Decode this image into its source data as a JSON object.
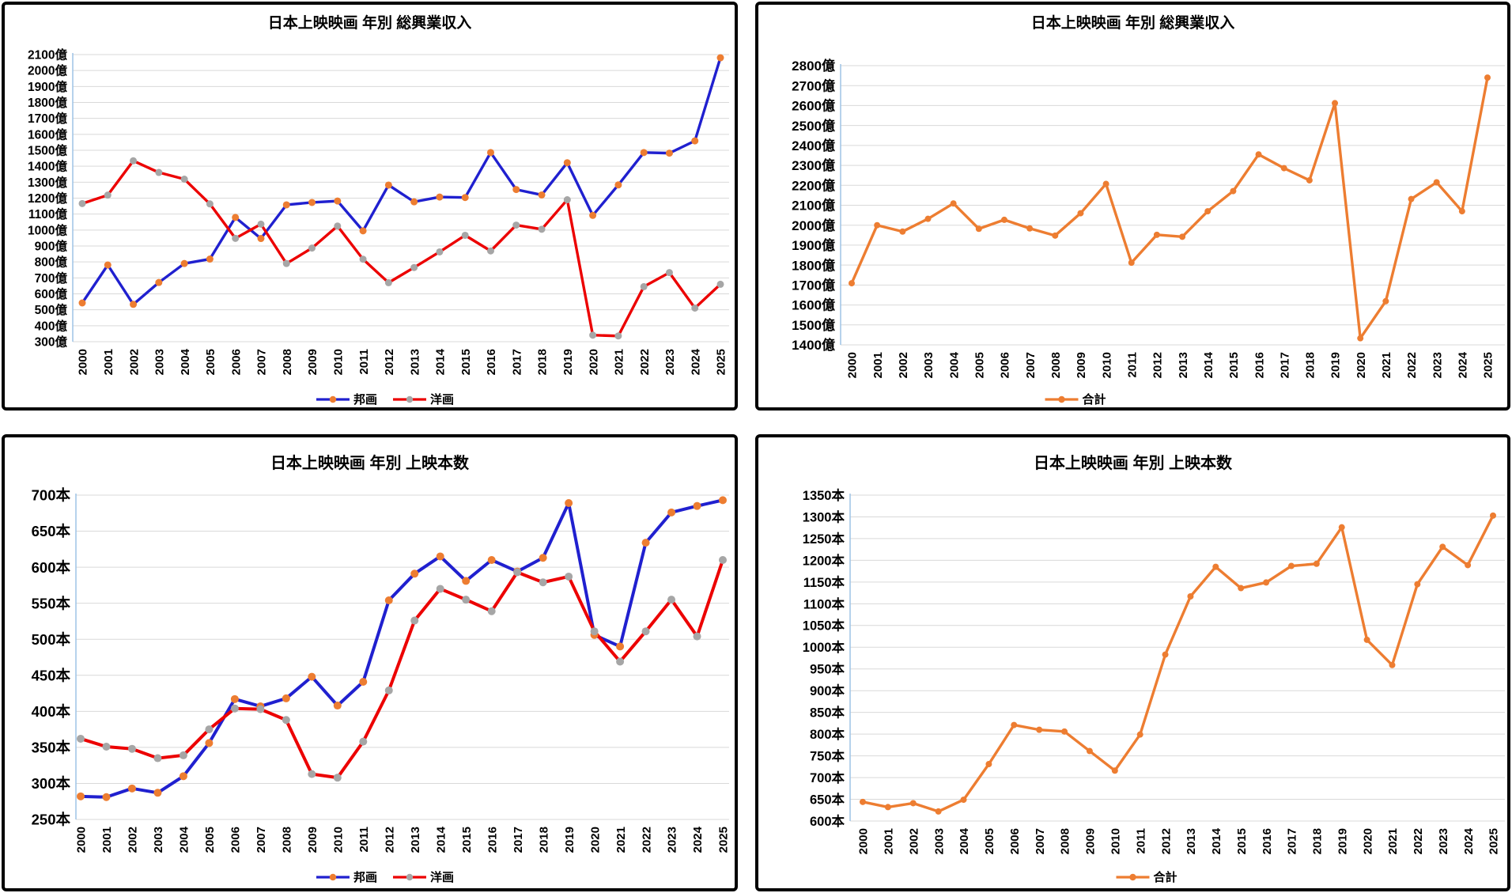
{
  "page": {
    "background": "#ffffff"
  },
  "colors": {
    "gridline": "#d9d9d9",
    "axis_line": "#9dc3e6",
    "domestic_line": "#2020cf",
    "foreign_line": "#ec0000",
    "total_line": "#ed7d31",
    "domestic_marker": "#ed7d31",
    "foreign_marker": "#a6a6a6",
    "total_marker": "#ed7d31",
    "text": "#000000",
    "panel_border": "#000000"
  },
  "years": [
    "2000",
    "2001",
    "2002",
    "2003",
    "2004",
    "2005",
    "2006",
    "2007",
    "2008",
    "2009",
    "2010",
    "2011",
    "2012",
    "2013",
    "2014",
    "2015",
    "2016",
    "2017",
    "2018",
    "2019",
    "2020",
    "2021",
    "2022",
    "2023",
    "2024",
    "2025"
  ],
  "chart_data": [
    {
      "type": "line",
      "title": "日本上映映画 年別 総興業収入",
      "unit": "億",
      "ylim": [
        300,
        2100
      ],
      "y_step": 100,
      "grid": true,
      "legend_position": "bottom",
      "categories": [
        "2000",
        "2001",
        "2002",
        "2003",
        "2004",
        "2005",
        "2006",
        "2007",
        "2008",
        "2009",
        "2010",
        "2011",
        "2012",
        "2013",
        "2014",
        "2015",
        "2016",
        "2017",
        "2018",
        "2019",
        "2020",
        "2021",
        "2022",
        "2023",
        "2024",
        "2025"
      ],
      "series": [
        {
          "name": "邦画",
          "key": "domestic",
          "color": "#2020cf",
          "marker_color": "#ed7d31",
          "values": [
            543,
            781,
            534,
            671,
            790,
            818,
            1079,
            947,
            1158,
            1173,
            1182,
            995,
            1282,
            1177,
            1207,
            1204,
            1486,
            1254,
            1220,
            1422,
            1092,
            1283,
            1486,
            1482,
            1559,
            2080
          ]
        },
        {
          "name": "洋画",
          "key": "foreign",
          "color": "#ec0000",
          "marker_color": "#a6a6a6",
          "values": [
            1166,
            1219,
            1434,
            1361,
            1319,
            1164,
            948,
            1037,
            790,
            887,
            1025,
            817,
            670,
            765,
            863,
            967,
            869,
            1031,
            1005,
            1190,
            341,
            336,
            645,
            733,
            511,
            660
          ]
        }
      ]
    },
    {
      "type": "line",
      "title": "日本上映映画 年別 総興業収入",
      "unit": "億",
      "ylim": [
        1400,
        2800
      ],
      "y_step": 100,
      "grid": true,
      "legend_position": "bottom",
      "categories": [
        "2000",
        "2001",
        "2002",
        "2003",
        "2004",
        "2005",
        "2006",
        "2007",
        "2008",
        "2009",
        "2010",
        "2011",
        "2012",
        "2013",
        "2014",
        "2015",
        "2016",
        "2017",
        "2018",
        "2019",
        "2020",
        "2021",
        "2022",
        "2023",
        "2024",
        "2025"
      ],
      "series": [
        {
          "name": "合計",
          "key": "total",
          "color": "#ed7d31",
          "marker_color": "#ed7d31",
          "values": [
            1709,
            2000,
            1968,
            2032,
            2109,
            1982,
            2027,
            1984,
            1948,
            2060,
            2207,
            1812,
            1952,
            1942,
            2070,
            2171,
            2355,
            2286,
            2225,
            2612,
            1433,
            1619,
            2131,
            2215,
            2070,
            2740
          ]
        }
      ]
    },
    {
      "type": "line",
      "title": "日本上映映画 年別 上映本数",
      "unit": "本",
      "ylim": [
        250,
        700
      ],
      "y_step": 50,
      "grid": true,
      "legend_position": "bottom",
      "categories": [
        "2000",
        "2001",
        "2002",
        "2003",
        "2004",
        "2005",
        "2006",
        "2007",
        "2008",
        "2009",
        "2010",
        "2011",
        "2012",
        "2013",
        "2014",
        "2015",
        "2016",
        "2017",
        "2018",
        "2019",
        "2020",
        "2021",
        "2022",
        "2023",
        "2024",
        "2025"
      ],
      "series": [
        {
          "name": "邦画",
          "key": "domestic",
          "color": "#2020cf",
          "marker_color": "#ed7d31",
          "values": [
            282,
            281,
            293,
            287,
            310,
            356,
            417,
            407,
            418,
            448,
            408,
            441,
            554,
            591,
            615,
            581,
            610,
            594,
            613,
            689,
            506,
            490,
            634,
            676,
            685,
            693
          ]
        },
        {
          "name": "洋画",
          "key": "foreign",
          "color": "#ec0000",
          "marker_color": "#a6a6a6",
          "values": [
            362,
            351,
            348,
            335,
            339,
            375,
            404,
            403,
            388,
            313,
            308,
            358,
            429,
            526,
            570,
            555,
            539,
            593,
            579,
            587,
            511,
            469,
            511,
            555,
            504,
            610
          ]
        }
      ]
    },
    {
      "type": "line",
      "title": "日本上映映画 年別 上映本数",
      "unit": "本",
      "ylim": [
        600,
        1350
      ],
      "y_step": 50,
      "grid": true,
      "legend_position": "bottom",
      "categories": [
        "2000",
        "2001",
        "2002",
        "2003",
        "2004",
        "2005",
        "2006",
        "2007",
        "2008",
        "2009",
        "2010",
        "2011",
        "2012",
        "2013",
        "2014",
        "2015",
        "2016",
        "2017",
        "2018",
        "2019",
        "2020",
        "2021",
        "2022",
        "2023",
        "2024",
        "2025"
      ],
      "series": [
        {
          "name": "合計",
          "key": "total",
          "color": "#ed7d31",
          "marker_color": "#ed7d31",
          "values": [
            644,
            632,
            641,
            622,
            649,
            731,
            821,
            810,
            806,
            761,
            716,
            799,
            983,
            1117,
            1185,
            1136,
            1149,
            1187,
            1192,
            1276,
            1017,
            959,
            1145,
            1231,
            1189,
            1303
          ]
        }
      ]
    }
  ]
}
